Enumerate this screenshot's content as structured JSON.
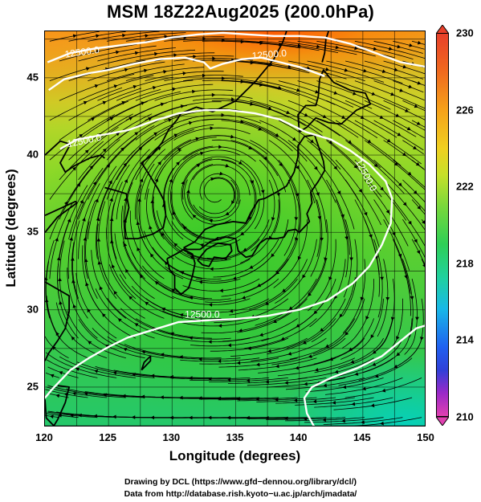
{
  "title": "MSM 18Z22Aug2025 (200.0hPa)",
  "x_axis": {
    "label": "Longitude (degrees)",
    "range": [
      120,
      150
    ],
    "ticks": [
      "120",
      "125",
      "130",
      "135",
      "140",
      "145",
      "150"
    ]
  },
  "y_axis": {
    "label": "Latitude  (degrees)",
    "range": [
      22.4,
      48
    ],
    "ticks": [
      "25",
      "30",
      "35",
      "40",
      "45"
    ]
  },
  "colorbar": {
    "range": [
      210,
      230
    ],
    "ticks": [
      "230",
      "226",
      "222",
      "218",
      "214",
      "210"
    ],
    "colors": [
      "#e8402a",
      "#f6a21a",
      "#c6e02a",
      "#2ecf56",
      "#18b8e8",
      "#2060f0",
      "#e040b0"
    ]
  },
  "contour_labels": [
    "12500.0",
    "12500.0",
    "12500.0",
    "12500.0"
  ],
  "map": {
    "anticyclone_center": {
      "lon": 133.5,
      "lat": 37.6
    },
    "contour_color": "#ffffff",
    "streamline_color": "#000000"
  },
  "credits": {
    "line1": "Drawing by DCL (https://www.gfd−dennou.org/library/dcl/)",
    "line2": "Data from http://database.rish.kyoto−u.ac.jp/arch/jmadata/"
  }
}
